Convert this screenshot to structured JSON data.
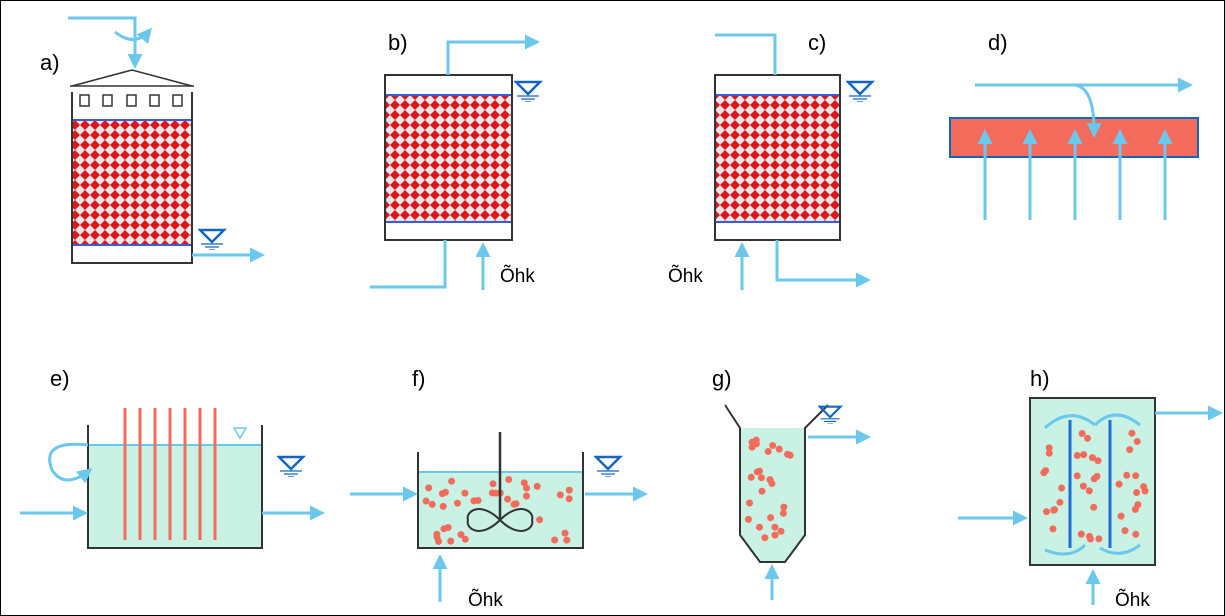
{
  "panels": [
    {
      "label": "a)"
    },
    {
      "label": "b)",
      "air_label": "Õhk"
    },
    {
      "label": "c)",
      "air_label": "Õhk"
    },
    {
      "label": "d)"
    },
    {
      "label": "e)"
    },
    {
      "label": "f)",
      "air_label": "Õhk"
    },
    {
      "label": "g)"
    },
    {
      "label": "h)",
      "air_label": "Õhk"
    }
  ]
}
